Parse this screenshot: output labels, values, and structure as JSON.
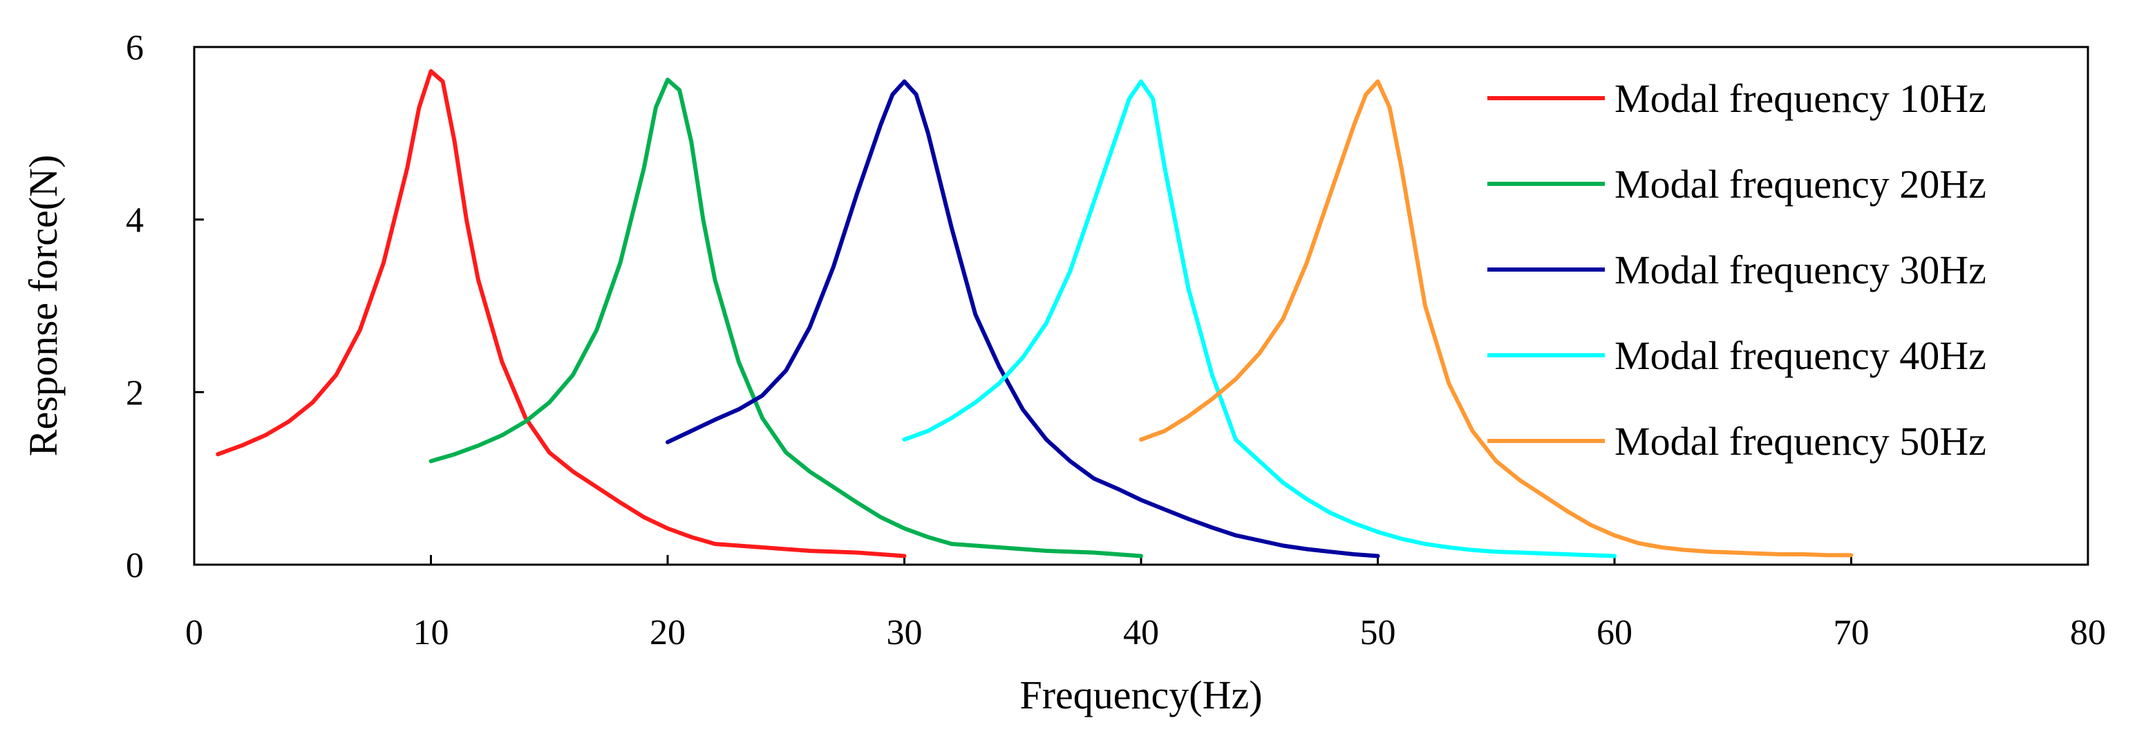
{
  "chart_data": {
    "type": "line",
    "title": "",
    "xlabel": "Frequency(Hz)",
    "ylabel": "Response force(N)",
    "xlim": [
      0,
      80
    ],
    "ylim": [
      0,
      6
    ],
    "xticks": [
      "0",
      "10",
      "20",
      "30",
      "40",
      "50",
      "60",
      "70",
      "80"
    ],
    "yticks": [
      "0",
      "2",
      "4",
      "6"
    ],
    "grid": false,
    "legend_position": "top-right",
    "series": [
      {
        "name": "Modal frequency 10Hz",
        "color": "#ff1a1a",
        "x": [
          1,
          2,
          3,
          4,
          5,
          6,
          7,
          8,
          9,
          9.5,
          10,
          10.5,
          11,
          11.5,
          12,
          13,
          14,
          15,
          16,
          17,
          18,
          19,
          20,
          21,
          22,
          23,
          24,
          25,
          26,
          27,
          28,
          29,
          30
        ],
        "y": [
          1.28,
          1.38,
          1.5,
          1.66,
          1.88,
          2.2,
          2.72,
          3.5,
          4.6,
          5.3,
          5.72,
          5.6,
          4.9,
          4.0,
          3.3,
          2.35,
          1.7,
          1.3,
          1.08,
          0.9,
          0.72,
          0.55,
          0.42,
          0.32,
          0.24,
          0.22,
          0.2,
          0.18,
          0.16,
          0.15,
          0.14,
          0.12,
          0.1
        ]
      },
      {
        "name": "Modal frequency 20Hz",
        "color": "#00b050",
        "x": [
          10,
          11,
          12,
          13,
          14,
          15,
          16,
          17,
          18,
          19,
          19.5,
          20,
          20.5,
          21,
          21.5,
          22,
          23,
          24,
          25,
          26,
          27,
          28,
          29,
          30,
          31,
          32,
          33,
          34,
          35,
          36,
          37,
          38,
          39,
          40
        ],
        "y": [
          1.2,
          1.28,
          1.38,
          1.5,
          1.66,
          1.88,
          2.2,
          2.72,
          3.5,
          4.6,
          5.3,
          5.62,
          5.5,
          4.9,
          4.0,
          3.3,
          2.35,
          1.7,
          1.3,
          1.08,
          0.9,
          0.72,
          0.55,
          0.42,
          0.32,
          0.24,
          0.22,
          0.2,
          0.18,
          0.16,
          0.15,
          0.14,
          0.12,
          0.1
        ]
      },
      {
        "name": "Modal frequency 30Hz",
        "color": "#0000a0",
        "x": [
          20,
          21,
          22,
          23,
          24,
          25,
          26,
          27,
          28,
          29,
          29.5,
          30,
          30.5,
          31,
          32,
          33,
          34,
          35,
          36,
          37,
          38,
          39,
          40,
          41,
          42,
          43,
          44,
          45,
          46,
          47,
          48,
          49,
          50
        ],
        "y": [
          1.42,
          1.55,
          1.68,
          1.8,
          1.96,
          2.25,
          2.75,
          3.45,
          4.3,
          5.1,
          5.45,
          5.6,
          5.45,
          5.0,
          3.9,
          2.9,
          2.3,
          1.8,
          1.45,
          1.2,
          1.0,
          0.88,
          0.75,
          0.64,
          0.53,
          0.43,
          0.34,
          0.28,
          0.22,
          0.18,
          0.15,
          0.12,
          0.1
        ]
      },
      {
        "name": "Modal frequency 40Hz",
        "color": "#00ffff",
        "x": [
          30,
          31,
          32,
          33,
          34,
          35,
          36,
          37,
          38,
          39,
          39.5,
          40,
          40.5,
          41,
          42,
          43,
          44,
          45,
          46,
          47,
          48,
          49,
          50,
          51,
          52,
          53,
          54,
          55,
          56,
          57,
          58,
          59,
          60
        ],
        "y": [
          1.45,
          1.55,
          1.7,
          1.88,
          2.1,
          2.4,
          2.8,
          3.4,
          4.2,
          5.0,
          5.4,
          5.6,
          5.4,
          4.6,
          3.2,
          2.2,
          1.45,
          1.2,
          0.95,
          0.76,
          0.6,
          0.48,
          0.38,
          0.3,
          0.24,
          0.2,
          0.17,
          0.15,
          0.14,
          0.13,
          0.12,
          0.11,
          0.1
        ]
      },
      {
        "name": "Modal frequency 50Hz",
        "color": "#ff9933",
        "x": [
          40,
          41,
          42,
          43,
          44,
          45,
          46,
          47,
          48,
          49,
          49.5,
          50,
          50.5,
          51,
          52,
          53,
          54,
          55,
          56,
          57,
          58,
          59,
          60,
          61,
          62,
          63,
          64,
          65,
          66,
          67,
          68,
          69,
          70
        ],
        "y": [
          1.45,
          1.55,
          1.72,
          1.92,
          2.15,
          2.45,
          2.85,
          3.5,
          4.3,
          5.1,
          5.45,
          5.6,
          5.3,
          4.6,
          3.0,
          2.1,
          1.55,
          1.2,
          0.98,
          0.8,
          0.62,
          0.46,
          0.34,
          0.25,
          0.2,
          0.17,
          0.15,
          0.14,
          0.13,
          0.12,
          0.12,
          0.11,
          0.11
        ]
      }
    ]
  }
}
